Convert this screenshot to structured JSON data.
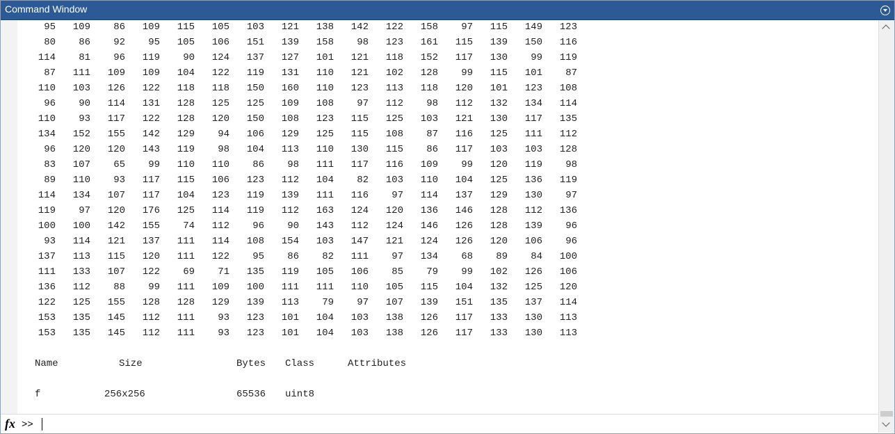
{
  "window": {
    "title": "Command Window"
  },
  "matrix": [
    [
      95,
      109,
      86,
      109,
      115,
      105,
      103,
      121,
      138,
      142,
      122,
      158,
      97,
      115,
      149,
      123
    ],
    [
      80,
      86,
      92,
      95,
      105,
      106,
      151,
      139,
      158,
      98,
      123,
      161,
      115,
      139,
      150,
      116
    ],
    [
      114,
      81,
      96,
      119,
      90,
      124,
      137,
      127,
      101,
      121,
      118,
      152,
      117,
      130,
      99,
      119
    ],
    [
      87,
      111,
      109,
      109,
      104,
      122,
      119,
      131,
      110,
      121,
      102,
      128,
      99,
      115,
      101,
      87
    ],
    [
      110,
      103,
      126,
      122,
      118,
      118,
      150,
      160,
      110,
      123,
      113,
      118,
      120,
      101,
      123,
      108
    ],
    [
      96,
      90,
      114,
      131,
      128,
      125,
      125,
      109,
      108,
      97,
      112,
      98,
      112,
      132,
      134,
      114
    ],
    [
      110,
      93,
      117,
      122,
      128,
      120,
      150,
      108,
      123,
      115,
      125,
      103,
      121,
      130,
      117,
      135
    ],
    [
      134,
      152,
      155,
      142,
      129,
      94,
      106,
      129,
      125,
      115,
      108,
      87,
      116,
      125,
      111,
      112
    ],
    [
      96,
      120,
      120,
      143,
      119,
      98,
      104,
      113,
      110,
      130,
      115,
      86,
      117,
      103,
      103,
      128
    ],
    [
      83,
      107,
      65,
      99,
      110,
      110,
      86,
      98,
      111,
      117,
      116,
      109,
      99,
      120,
      119,
      98
    ],
    [
      89,
      110,
      93,
      117,
      115,
      106,
      123,
      112,
      104,
      82,
      103,
      110,
      104,
      125,
      136,
      119
    ],
    [
      114,
      134,
      107,
      117,
      104,
      123,
      119,
      139,
      111,
      116,
      97,
      114,
      137,
      129,
      130,
      97
    ],
    [
      119,
      97,
      120,
      176,
      125,
      114,
      119,
      112,
      163,
      124,
      120,
      136,
      146,
      128,
      112,
      136
    ],
    [
      100,
      100,
      142,
      155,
      74,
      112,
      96,
      90,
      143,
      112,
      124,
      146,
      126,
      128,
      139,
      96
    ],
    [
      93,
      114,
      121,
      137,
      111,
      114,
      108,
      154,
      103,
      147,
      121,
      124,
      126,
      120,
      106,
      96
    ],
    [
      137,
      113,
      115,
      120,
      111,
      122,
      95,
      86,
      82,
      111,
      97,
      134,
      68,
      89,
      84,
      100
    ],
    [
      111,
      133,
      107,
      122,
      69,
      71,
      135,
      119,
      105,
      106,
      85,
      79,
      99,
      102,
      126,
      106
    ],
    [
      136,
      112,
      88,
      99,
      111,
      109,
      100,
      111,
      111,
      110,
      105,
      115,
      104,
      132,
      125,
      120
    ],
    [
      122,
      125,
      155,
      128,
      128,
      129,
      139,
      113,
      79,
      97,
      107,
      139,
      151,
      135,
      137,
      114
    ],
    [
      153,
      135,
      145,
      112,
      111,
      93,
      123,
      101,
      104,
      103,
      138,
      126,
      117,
      133,
      130,
      113
    ],
    [
      153,
      135,
      145,
      112,
      111,
      93,
      123,
      101,
      104,
      103,
      138,
      126,
      117,
      133,
      130,
      113
    ]
  ],
  "whos": {
    "headers": [
      "Name",
      "Size",
      "Bytes",
      "Class",
      "Attributes"
    ],
    "rows": [
      [
        "f",
        "256x256",
        65536,
        "uint8"
      ]
    ]
  },
  "prompt": {
    "icon": "fx",
    "text": ">>"
  }
}
